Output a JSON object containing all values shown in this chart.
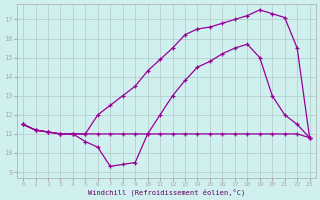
{
  "xlabel": "Windchill (Refroidissement éolien,°C)",
  "background_color": "#cff0ee",
  "grid_color": "#b0c8c8",
  "line_color": "#990099",
  "xlim": [
    -0.5,
    23.5
  ],
  "ylim": [
    8.7,
    17.8
  ],
  "xticks": [
    0,
    1,
    2,
    3,
    4,
    5,
    6,
    7,
    8,
    9,
    10,
    11,
    12,
    13,
    14,
    15,
    16,
    17,
    18,
    19,
    20,
    21,
    22,
    23
  ],
  "yticks": [
    9,
    10,
    11,
    12,
    13,
    14,
    15,
    16,
    17
  ],
  "line1_x": [
    0,
    1,
    2,
    3,
    4,
    5,
    6,
    7,
    8,
    9,
    10,
    11,
    12,
    13,
    14,
    15,
    16,
    17,
    18,
    19,
    20,
    21,
    22,
    23
  ],
  "line1_y": [
    11.5,
    11.2,
    11.1,
    11.0,
    11.0,
    10.6,
    10.3,
    9.3,
    9.4,
    9.5,
    11.0,
    11.0,
    11.0,
    11.0,
    11.0,
    11.0,
    11.0,
    11.0,
    11.0,
    11.0,
    11.0,
    11.0,
    11.0,
    10.8
  ],
  "line2_x": [
    0,
    1,
    2,
    3,
    4,
    5,
    6,
    7,
    8,
    9,
    10,
    11,
    12,
    13,
    14,
    15,
    16,
    17,
    18,
    19,
    20,
    21,
    22,
    23
  ],
  "line2_y": [
    11.5,
    11.2,
    11.1,
    11.0,
    11.0,
    11.0,
    11.0,
    11.0,
    11.0,
    11.0,
    11.0,
    12.0,
    13.0,
    13.8,
    14.5,
    14.8,
    15.2,
    15.5,
    15.7,
    15.0,
    13.0,
    12.0,
    11.5,
    10.8
  ],
  "line3_x": [
    0,
    1,
    2,
    3,
    4,
    5,
    6,
    7,
    8,
    9,
    10,
    11,
    12,
    13,
    14,
    15,
    16,
    17,
    18,
    19,
    20,
    21,
    22,
    23
  ],
  "line3_y": [
    11.5,
    11.2,
    11.1,
    11.0,
    11.0,
    11.0,
    12.0,
    12.5,
    13.0,
    13.5,
    14.3,
    14.9,
    15.5,
    16.2,
    16.5,
    16.6,
    16.8,
    17.0,
    17.2,
    17.5,
    17.3,
    17.1,
    15.5,
    10.8
  ]
}
